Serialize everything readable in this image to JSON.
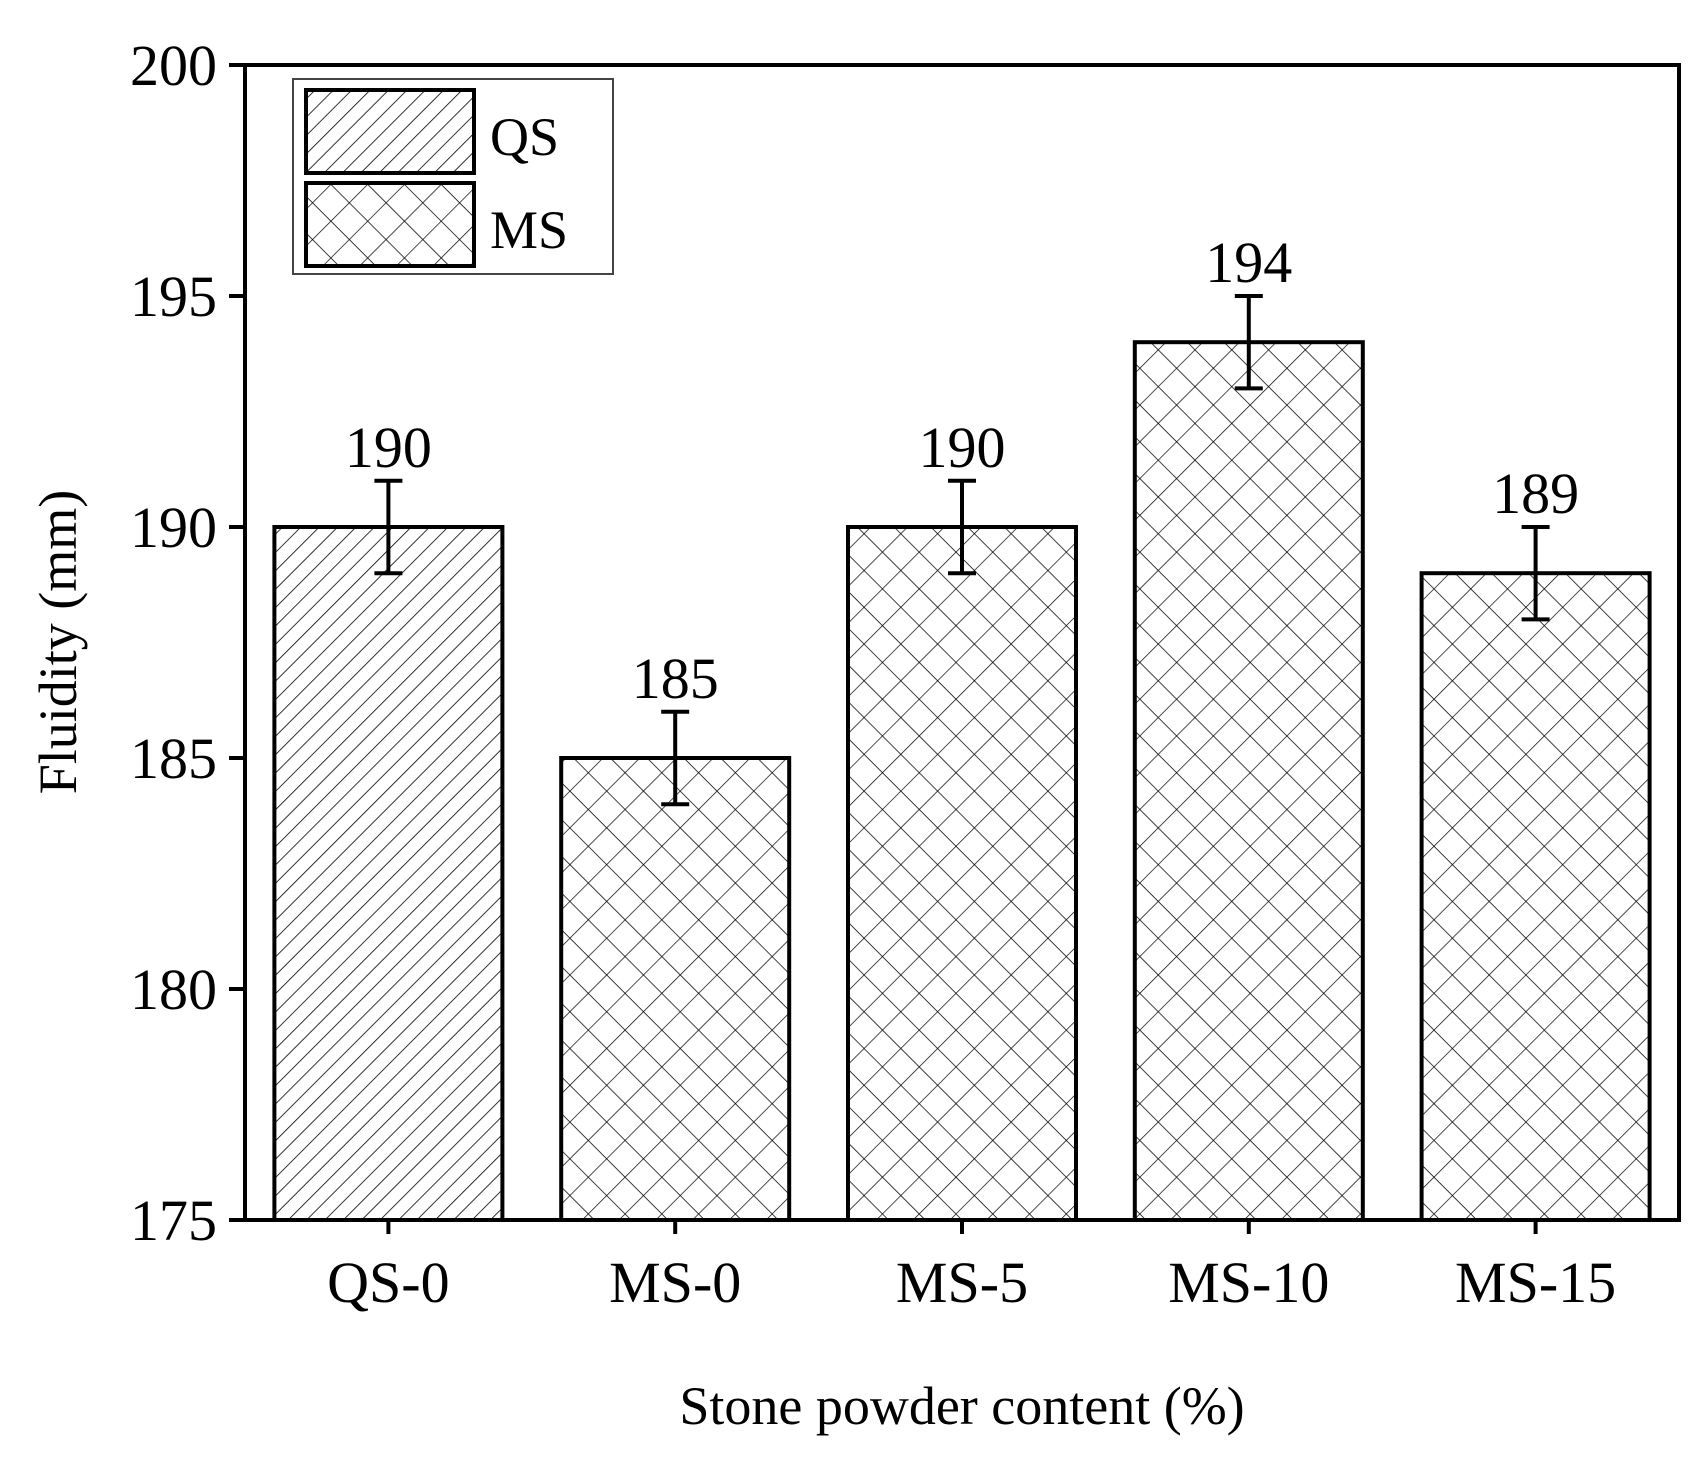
{
  "chart_data": {
    "type": "bar",
    "title": "",
    "xlabel": "Stone powder content (%)",
    "ylabel": "Fluidity (mm)",
    "ylim": [
      175,
      200
    ],
    "yticks": [
      175,
      180,
      185,
      190,
      195,
      200
    ],
    "categories": [
      "QS-0",
      "MS-0",
      "MS-5",
      "MS-10",
      "MS-15"
    ],
    "values": [
      190,
      185,
      190,
      194,
      189
    ],
    "errors": [
      1,
      1,
      1,
      1,
      1
    ],
    "value_labels": [
      "190",
      "185",
      "190",
      "194",
      "189"
    ],
    "bar_series": [
      "QS",
      "MS",
      "MS",
      "MS",
      "MS"
    ],
    "legend": {
      "position": "top-left",
      "items": [
        {
          "name": "QS",
          "pattern": "diagonal-hatch"
        },
        {
          "name": "MS",
          "pattern": "crosshatch"
        }
      ]
    },
    "grid": false,
    "colors": {
      "bar_fill": "#ffffff",
      "line": "#000000"
    }
  }
}
